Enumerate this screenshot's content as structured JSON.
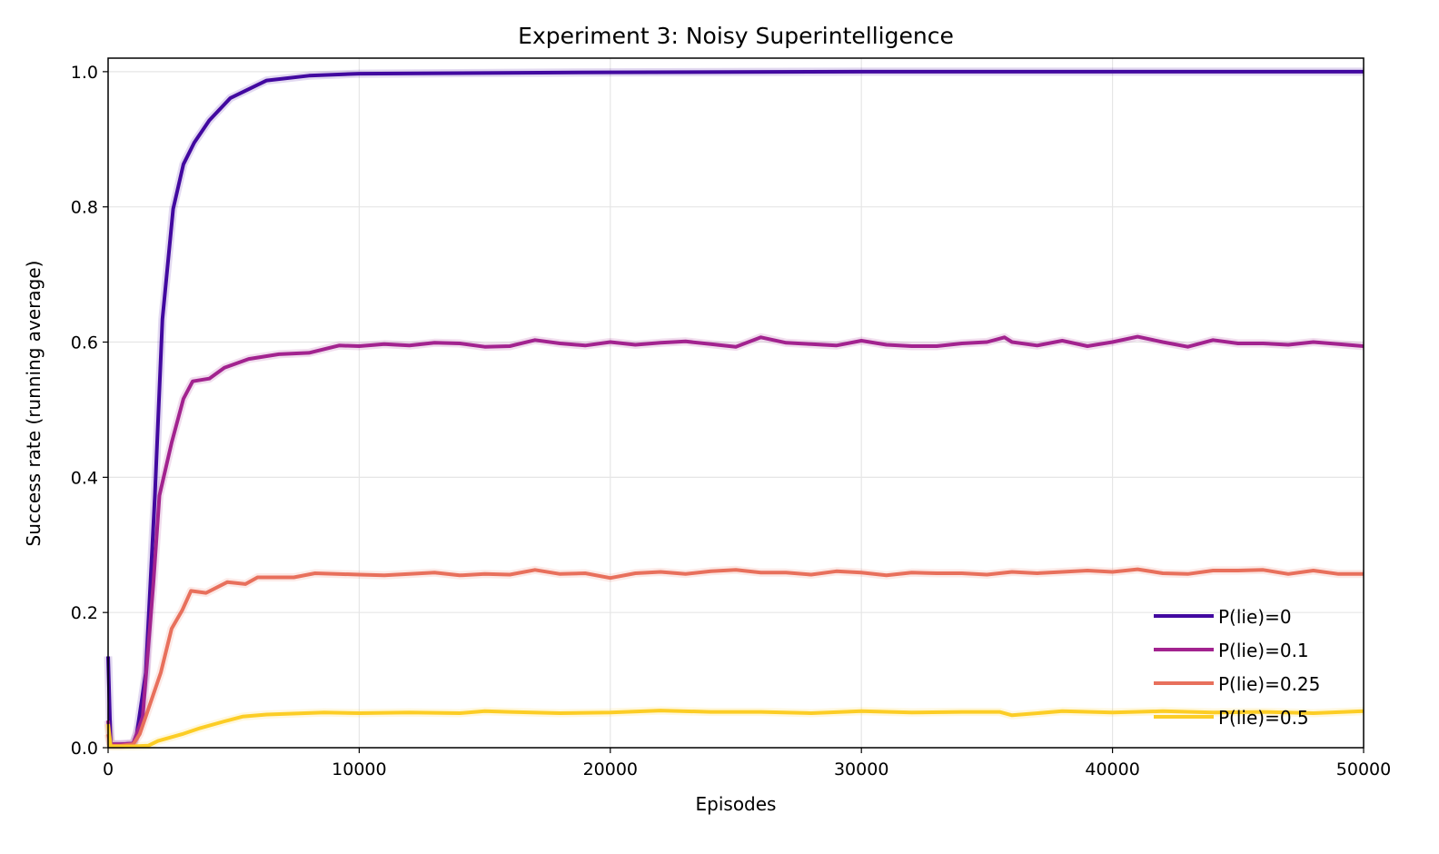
{
  "chart_data": {
    "type": "line",
    "title": "Experiment 3: Noisy Superintelligence",
    "xlabel": "Episodes",
    "ylabel": "Success rate (running average)",
    "xlim": [
      0,
      50000
    ],
    "ylim": [
      0,
      1.02
    ],
    "xticks": [
      0,
      10000,
      20000,
      30000,
      40000,
      50000
    ],
    "yticks": [
      "0.0",
      "0.2",
      "0.4",
      "0.6",
      "0.8",
      "1.0"
    ],
    "grid": true,
    "legend_position": "lower-right",
    "series": [
      {
        "name": "P(lie)=0",
        "color": "#4209a0",
        "x": [
          0,
          100,
          500,
          1000,
          1140,
          1500,
          1865,
          2165,
          2590,
          3000,
          3430,
          4030,
          4870,
          6315,
          8000,
          10000,
          20000,
          30000,
          40000,
          50000
        ],
        "y": [
          0.135,
          0.005,
          0.005,
          0.006,
          0.02,
          0.111,
          0.373,
          0.634,
          0.797,
          0.863,
          0.895,
          0.928,
          0.961,
          0.987,
          0.994,
          0.997,
          0.999,
          1.0,
          1.0,
          1.0
        ]
      },
      {
        "name": "P(lie)=0.1",
        "color": "#a2238f",
        "x": [
          0,
          100,
          500,
          1000,
          1380,
          1800,
          2045,
          2530,
          3000,
          3370,
          4030,
          4630,
          5600,
          6800,
          8000,
          9200,
          10000,
          11000,
          12000,
          13000,
          14000,
          15000,
          16000,
          17000,
          18000,
          19000,
          20000,
          21000,
          22000,
          23000,
          24000,
          25000,
          26000,
          27000,
          28000,
          29000,
          30000,
          31000,
          32000,
          33000,
          34000,
          35000,
          35700,
          36000,
          37000,
          38000,
          39000,
          40000,
          41000,
          42000,
          43000,
          44000,
          45000,
          46000,
          47000,
          48000,
          49000,
          50000
        ],
        "y": [
          0.04,
          0.005,
          0.005,
          0.006,
          0.046,
          0.242,
          0.373,
          0.451,
          0.516,
          0.542,
          0.546,
          0.562,
          0.575,
          0.582,
          0.584,
          0.595,
          0.594,
          0.597,
          0.595,
          0.599,
          0.598,
          0.593,
          0.594,
          0.603,
          0.598,
          0.595,
          0.6,
          0.596,
          0.599,
          0.601,
          0.597,
          0.593,
          0.607,
          0.599,
          0.597,
          0.595,
          0.602,
          0.596,
          0.594,
          0.594,
          0.598,
          0.6,
          0.607,
          0.6,
          0.595,
          0.602,
          0.594,
          0.6,
          0.608,
          0.6,
          0.593,
          0.603,
          0.598,
          0.598,
          0.596,
          0.6,
          0.597,
          0.594
        ]
      },
      {
        "name": "P(lie)=0.25",
        "color": "#e8705c",
        "x": [
          0,
          100,
          500,
          1000,
          1260,
          2100,
          2530,
          2950,
          3300,
          3900,
          4750,
          5470,
          5950,
          7400,
          8240,
          10000,
          11000,
          12000,
          13000,
          14000,
          15000,
          16000,
          17000,
          18000,
          19000,
          20000,
          21000,
          22000,
          23000,
          24000,
          25000,
          26000,
          27000,
          28000,
          29000,
          30000,
          31000,
          32000,
          33000,
          34000,
          35000,
          36000,
          37000,
          38000,
          39000,
          40000,
          41000,
          42000,
          43000,
          44000,
          45000,
          46000,
          47000,
          48000,
          49000,
          50000
        ],
        "y": [
          0.02,
          0.003,
          0.003,
          0.005,
          0.02,
          0.111,
          0.176,
          0.203,
          0.232,
          0.229,
          0.245,
          0.242,
          0.252,
          0.252,
          0.258,
          0.256,
          0.255,
          0.257,
          0.259,
          0.255,
          0.257,
          0.256,
          0.263,
          0.257,
          0.258,
          0.251,
          0.258,
          0.26,
          0.257,
          0.261,
          0.263,
          0.259,
          0.259,
          0.256,
          0.261,
          0.259,
          0.255,
          0.259,
          0.258,
          0.258,
          0.256,
          0.26,
          0.258,
          0.26,
          0.262,
          0.26,
          0.264,
          0.258,
          0.257,
          0.262,
          0.262,
          0.263,
          0.257,
          0.262,
          0.257,
          0.257
        ]
      },
      {
        "name": "P(lie)=0.5",
        "color": "#fccd25",
        "x": [
          0,
          100,
          500,
          1000,
          1600,
          1985,
          2950,
          3670,
          4630,
          5350,
          6315,
          8600,
          10000,
          12000,
          14000,
          15000,
          16000,
          18000,
          20000,
          22000,
          24000,
          26000,
          28000,
          30000,
          32000,
          34000,
          35500,
          36000,
          38000,
          40000,
          42000,
          44000,
          46000,
          48000,
          50000
        ],
        "y": [
          0.035,
          0.002,
          0.002,
          0.002,
          0.003,
          0.01,
          0.02,
          0.029,
          0.039,
          0.046,
          0.049,
          0.052,
          0.051,
          0.052,
          0.051,
          0.054,
          0.053,
          0.051,
          0.052,
          0.055,
          0.053,
          0.053,
          0.051,
          0.054,
          0.052,
          0.053,
          0.053,
          0.048,
          0.054,
          0.052,
          0.054,
          0.052,
          0.053,
          0.051,
          0.054
        ]
      }
    ]
  }
}
